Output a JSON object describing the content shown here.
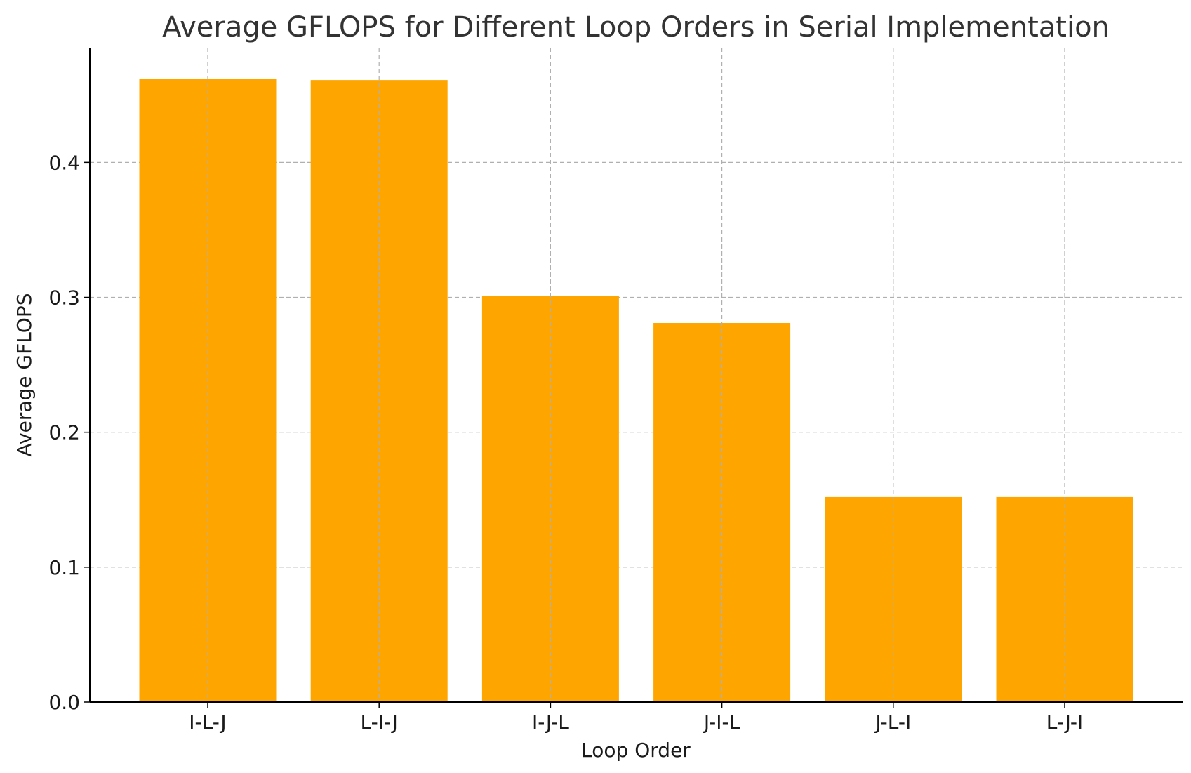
{
  "chart_data": {
    "type": "bar",
    "title": "Average GFLOPS for Different Loop Orders in Serial Implementation",
    "xlabel": "Loop Order",
    "ylabel": "Average GFLOPS",
    "categories": [
      "I-L-J",
      "L-I-J",
      "I-J-L",
      "J-I-L",
      "J-L-I",
      "L-J-I"
    ],
    "values": [
      0.462,
      0.461,
      0.301,
      0.281,
      0.152,
      0.152
    ],
    "ylim": [
      0,
      0.485
    ],
    "yticks": [
      0.0,
      0.1,
      0.2,
      0.3,
      0.4
    ],
    "ytick_labels": [
      "0.0",
      "0.1",
      "0.2",
      "0.3",
      "0.4"
    ],
    "grid": true,
    "bar_color": "#FFA500"
  }
}
